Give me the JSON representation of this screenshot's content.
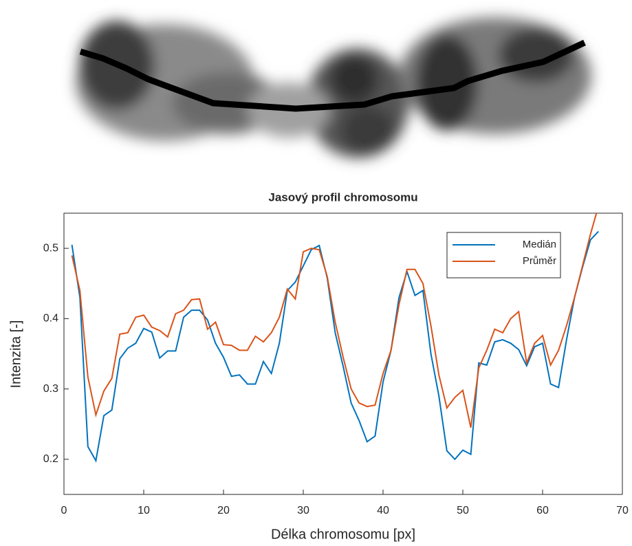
{
  "chart_data": {
    "type": "line",
    "title": "Jasový profil chromosomu",
    "x_label": "Délka chromosomu [px]",
    "y_label": "Intenzita [-]",
    "x": [
      1,
      2,
      3,
      4,
      5,
      6,
      7,
      8,
      9,
      10,
      11,
      12,
      13,
      14,
      15,
      16,
      17,
      18,
      19,
      20,
      21,
      22,
      23,
      24,
      25,
      26,
      27,
      28,
      29,
      30,
      31,
      32,
      33,
      34,
      35,
      36,
      37,
      38,
      39,
      40,
      41,
      42,
      43,
      44,
      45,
      46,
      47,
      48,
      49,
      50,
      51,
      52,
      53,
      54,
      55,
      56,
      57,
      58,
      59,
      60,
      61,
      62,
      63,
      64,
      65,
      66,
      67
    ],
    "series": [
      {
        "name": "Medián",
        "color": "#0072bd",
        "values": [
          0.505,
          0.43,
          0.218,
          0.198,
          0.262,
          0.27,
          0.343,
          0.358,
          0.365,
          0.386,
          0.381,
          0.344,
          0.354,
          0.354,
          0.402,
          0.412,
          0.412,
          0.398,
          0.365,
          0.345,
          0.318,
          0.32,
          0.307,
          0.307,
          0.339,
          0.322,
          0.365,
          0.44,
          0.452,
          0.475,
          0.498,
          0.504,
          0.458,
          0.38,
          0.332,
          0.28,
          0.255,
          0.225,
          0.233,
          0.31,
          0.355,
          0.43,
          0.467,
          0.433,
          0.44,
          0.35,
          0.29,
          0.212,
          0.2,
          0.213,
          0.207,
          0.337,
          0.334,
          0.367,
          0.37,
          0.365,
          0.356,
          0.333,
          0.36,
          0.365,
          0.307,
          0.302,
          0.37,
          0.43,
          0.473,
          0.512,
          0.524
        ]
      },
      {
        "name": "Průměr",
        "color": "#d95319",
        "values": [
          0.49,
          0.44,
          0.317,
          0.263,
          0.297,
          0.315,
          0.378,
          0.38,
          0.402,
          0.405,
          0.388,
          0.383,
          0.374,
          0.407,
          0.412,
          0.427,
          0.428,
          0.385,
          0.395,
          0.363,
          0.362,
          0.355,
          0.355,
          0.375,
          0.367,
          0.38,
          0.402,
          0.442,
          0.428,
          0.495,
          0.5,
          0.498,
          0.46,
          0.395,
          0.345,
          0.3,
          0.28,
          0.275,
          0.277,
          0.322,
          0.355,
          0.42,
          0.47,
          0.47,
          0.45,
          0.39,
          0.32,
          0.273,
          0.288,
          0.298,
          0.245,
          0.33,
          0.355,
          0.385,
          0.38,
          0.4,
          0.41,
          0.337,
          0.365,
          0.376,
          0.334,
          0.355,
          0.39,
          0.43,
          0.475,
          0.52,
          0.56
        ]
      }
    ],
    "xlim": [
      0,
      70
    ],
    "xticks": [
      0,
      10,
      20,
      30,
      40,
      50,
      60,
      70
    ],
    "ylim": [
      0.15,
      0.55
    ],
    "yticks": [
      0.2,
      0.3,
      0.4,
      0.5
    ],
    "grid": false,
    "legend": "northeast"
  }
}
